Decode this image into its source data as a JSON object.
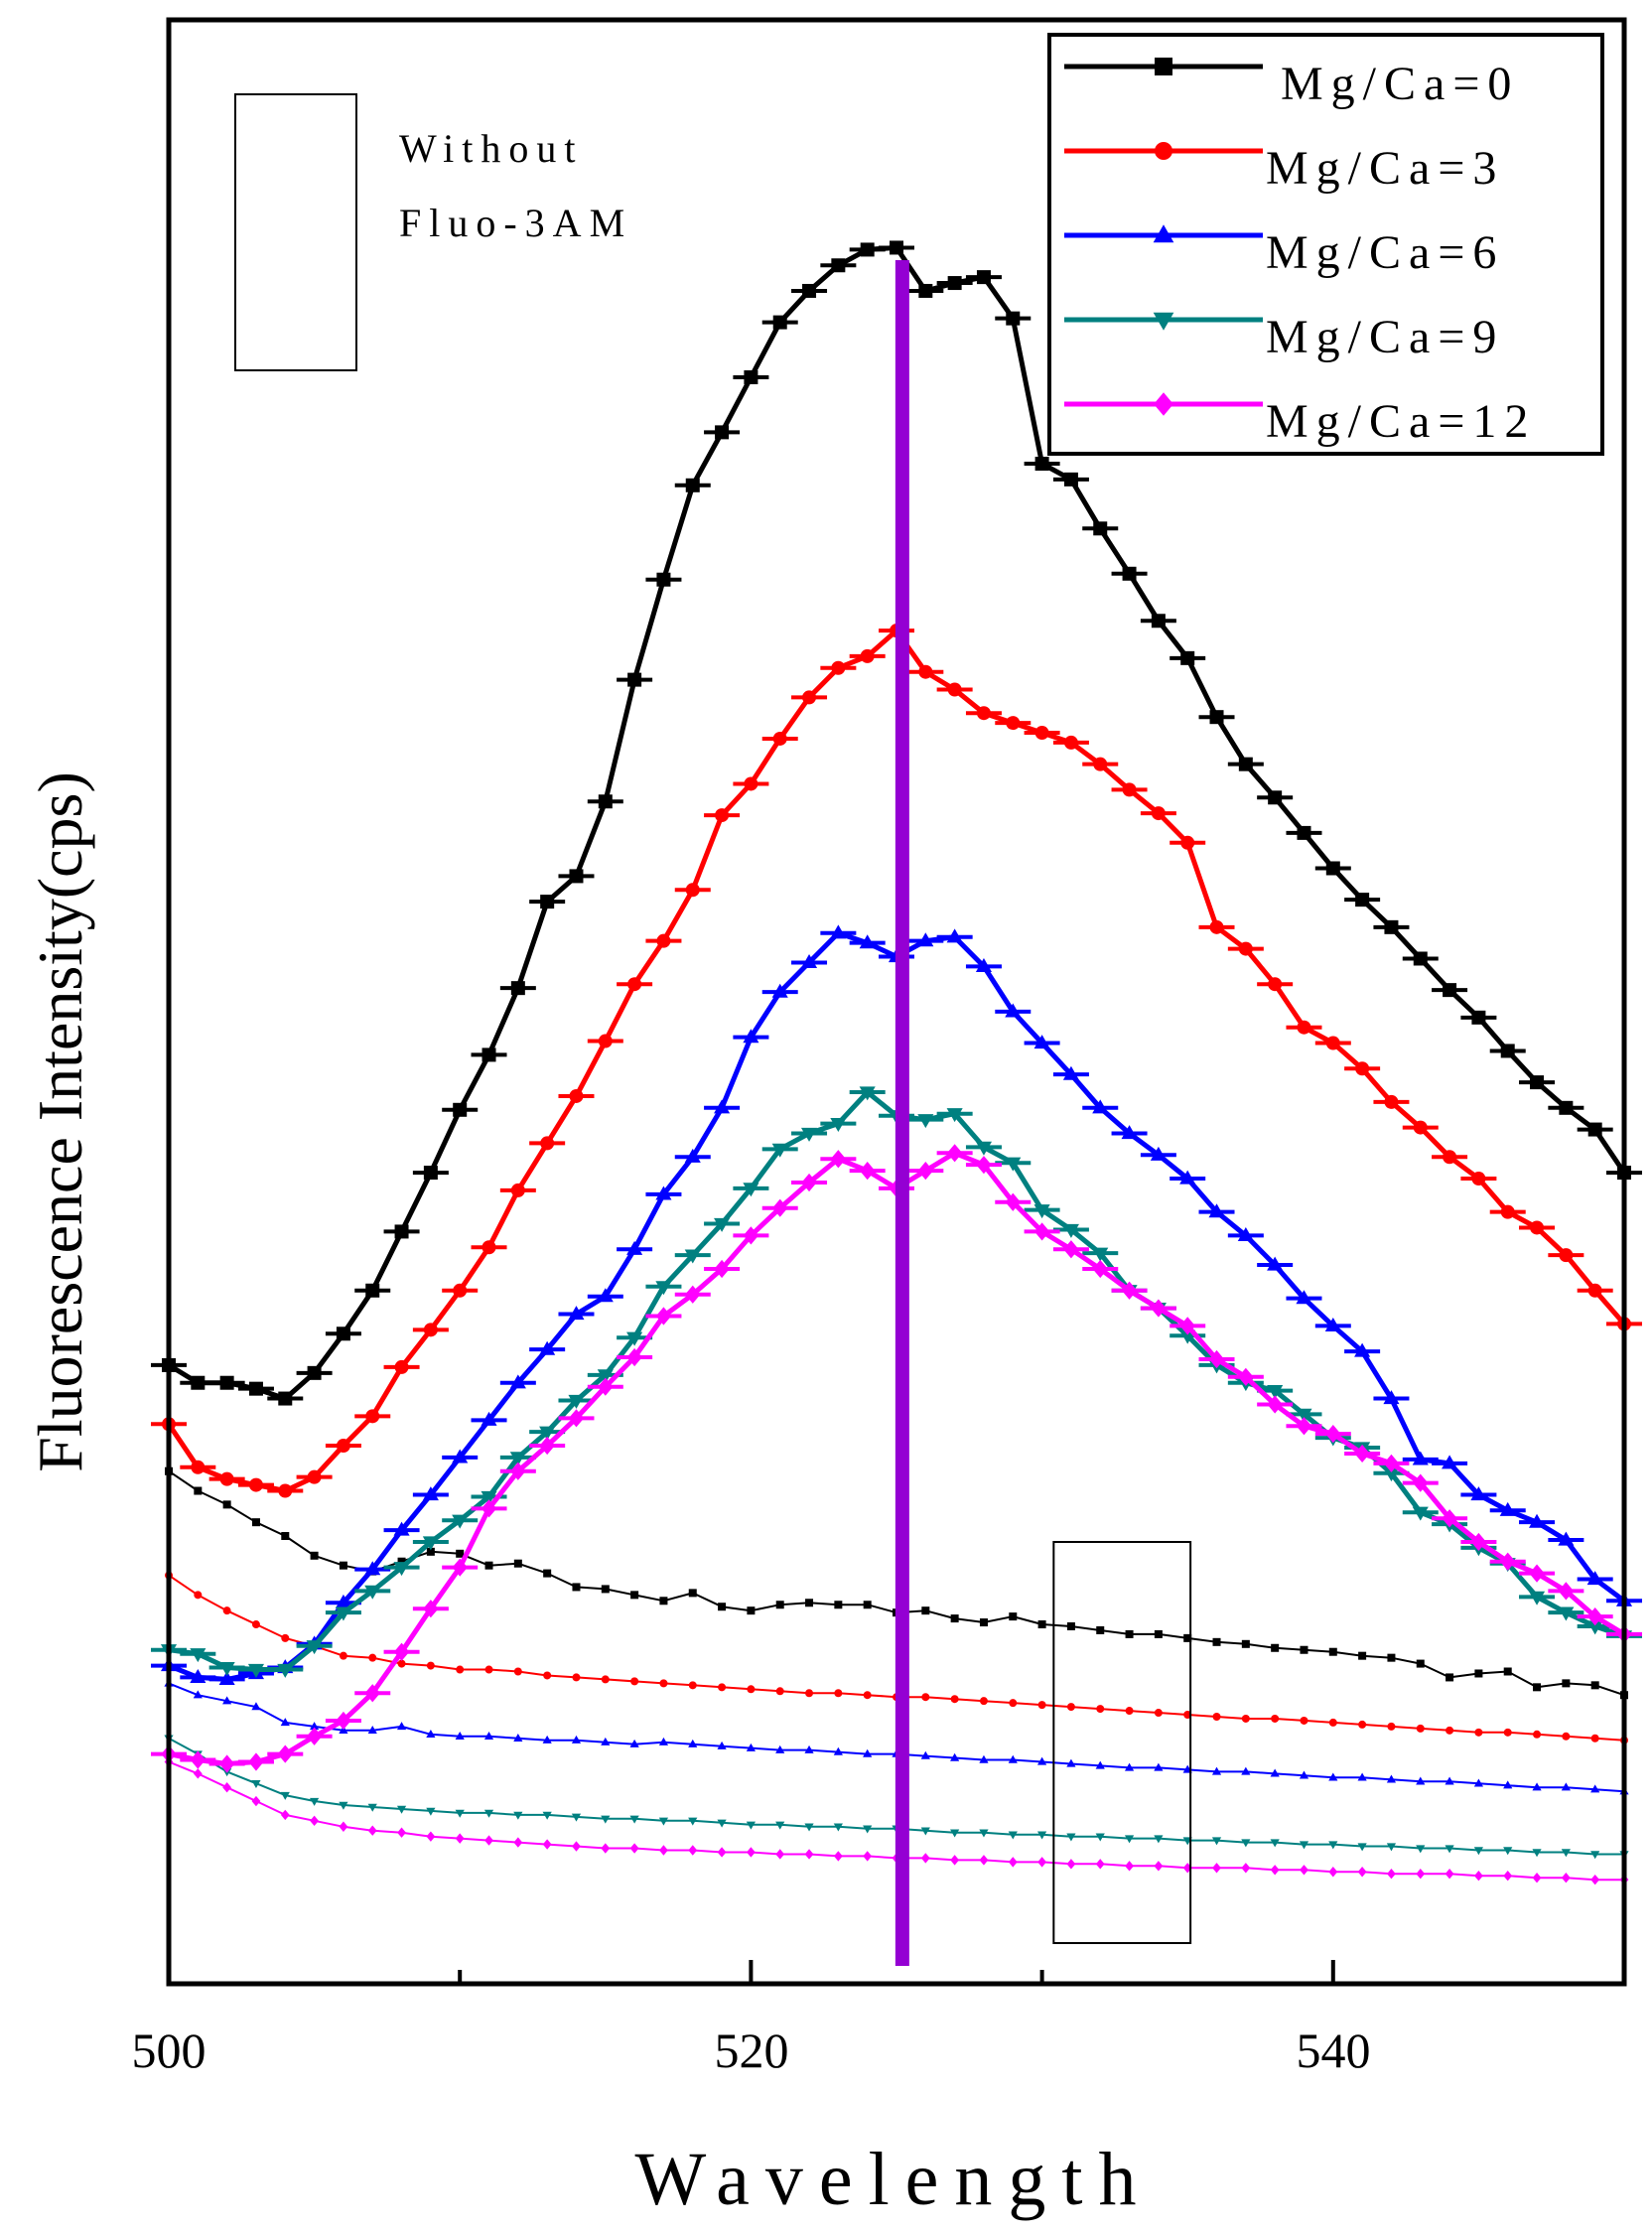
{
  "chart_data": {
    "type": "line",
    "title": "",
    "xlabel": "Wavelength",
    "ylabel": "Fluorescence Intensity(cps)",
    "xlim": [
      500,
      550
    ],
    "ylim": [
      0,
      100
    ],
    "y_units": "relative (unlabeled axis)",
    "xticks": [
      500,
      520,
      540
    ],
    "xticks_minor": [
      510,
      530,
      550
    ],
    "vertical_marker": {
      "x": 525.2,
      "color": "#9400D3"
    },
    "annotation_box": {
      "lines": [
        "Without",
        "Fluo-3AM"
      ]
    },
    "highlight_box_x_range": [
      530.4,
      535.1
    ],
    "legend": {
      "position": "top-right"
    },
    "x": [
      500,
      501,
      502,
      503,
      504,
      505,
      506,
      507,
      508,
      509,
      510,
      511,
      512,
      513,
      514,
      515,
      516,
      517,
      518,
      519,
      520,
      521,
      522,
      523,
      524,
      525,
      526,
      527,
      528,
      529,
      530,
      531,
      532,
      533,
      534,
      535,
      536,
      537,
      538,
      539,
      540,
      541,
      542,
      543,
      544,
      545,
      546,
      547,
      548,
      549,
      550
    ],
    "series": [
      {
        "name": "Mg/Ca=0",
        "color": "#000000",
        "marker": "square",
        "kind": "with Fluo-3AM",
        "values": [
          31.5,
          30.6,
          30.6,
          30.3,
          29.8,
          31.1,
          33.1,
          35.3,
          38.3,
          41.3,
          44.5,
          47.3,
          50.7,
          55.1,
          56.4,
          60.2,
          66.4,
          71.5,
          76.3,
          79.0,
          81.8,
          84.6,
          86.2,
          87.5,
          88.3,
          88.4,
          86.2,
          86.6,
          86.9,
          84.8,
          77.4,
          76.6,
          74.1,
          71.8,
          69.4,
          67.5,
          64.5,
          62.1,
          60.4,
          58.6,
          56.8,
          55.2,
          53.8,
          52.2,
          50.6,
          49.2,
          47.5,
          45.9,
          44.6,
          43.5,
          41.3
        ]
      },
      {
        "name": "Mg/Ca=3",
        "color": "#FF0000",
        "marker": "circle",
        "kind": "with Fluo-3AM",
        "values": [
          28.5,
          26.3,
          25.7,
          25.4,
          25.1,
          25.8,
          27.4,
          28.9,
          31.4,
          33.3,
          35.3,
          37.5,
          40.4,
          42.8,
          45.2,
          48.0,
          50.9,
          53.1,
          55.7,
          59.5,
          61.1,
          63.4,
          65.5,
          67.0,
          67.6,
          68.9,
          66.8,
          65.9,
          64.7,
          64.2,
          63.7,
          63.2,
          62.1,
          60.8,
          59.6,
          58.1,
          53.8,
          52.7,
          50.9,
          48.7,
          47.9,
          46.6,
          44.9,
          43.6,
          42.1,
          41.0,
          39.3,
          38.5,
          37.1,
          35.3,
          33.6
        ]
      },
      {
        "name": "Mg/Ca=6",
        "color": "#0000FF",
        "marker": "triangle-up",
        "kind": "with Fluo-3AM",
        "values": [
          16.2,
          15.6,
          15.5,
          15.8,
          16.1,
          17.3,
          19.4,
          21.1,
          23.1,
          24.9,
          26.8,
          28.7,
          30.6,
          32.3,
          34.1,
          35.0,
          37.4,
          40.2,
          42.1,
          44.6,
          48.2,
          50.5,
          52.0,
          53.5,
          53.0,
          52.3,
          53.1,
          53.3,
          51.8,
          49.5,
          47.9,
          46.3,
          44.6,
          43.3,
          42.2,
          41.0,
          39.3,
          38.1,
          36.6,
          34.9,
          33.5,
          32.2,
          29.8,
          26.7,
          26.5,
          24.9,
          24.1,
          23.5,
          22.6,
          20.6,
          19.5
        ]
      },
      {
        "name": "Mg/Ca=9",
        "color": "#008080",
        "marker": "triangle-down",
        "kind": "with Fluo-3AM",
        "values": [
          17.0,
          16.8,
          16.1,
          16.0,
          16.0,
          17.2,
          18.9,
          20.0,
          21.2,
          22.5,
          23.6,
          24.8,
          26.8,
          28.1,
          29.7,
          31.0,
          32.9,
          35.5,
          37.1,
          38.7,
          40.5,
          42.5,
          43.3,
          43.8,
          45.4,
          44.2,
          44.0,
          44.3,
          42.6,
          41.8,
          39.4,
          38.4,
          37.2,
          35.3,
          34.4,
          33.0,
          31.5,
          30.6,
          30.2,
          29.0,
          27.8,
          27.3,
          26.0,
          24.0,
          23.4,
          22.2,
          21.4,
          19.7,
          18.9,
          18.2,
          17.7
        ]
      },
      {
        "name": "Mg/Ca=12",
        "color": "#FF00FF",
        "marker": "diamond",
        "kind": "with Fluo-3AM",
        "values": [
          11.7,
          11.4,
          11.2,
          11.3,
          11.7,
          12.6,
          13.4,
          14.8,
          16.9,
          19.1,
          21.2,
          24.2,
          26.1,
          27.4,
          28.8,
          30.4,
          31.9,
          34.0,
          35.1,
          36.4,
          38.1,
          39.5,
          40.8,
          42.0,
          41.4,
          40.5,
          41.4,
          42.3,
          41.7,
          39.8,
          38.3,
          37.4,
          36.4,
          35.3,
          34.4,
          33.5,
          31.8,
          30.9,
          29.5,
          28.4,
          28.0,
          27.0,
          26.5,
          25.5,
          23.7,
          22.5,
          21.5,
          20.9,
          20.0,
          18.7,
          17.8
        ]
      },
      {
        "name": "Mg/Ca=0",
        "color": "#000000",
        "marker": "square-small",
        "kind": "without Fluo-3AM",
        "values": [
          26.1,
          25.1,
          24.4,
          23.5,
          22.8,
          21.8,
          21.3,
          21.0,
          21.5,
          22.0,
          21.9,
          21.3,
          21.4,
          20.9,
          20.2,
          20.1,
          19.8,
          19.5,
          19.9,
          19.2,
          19.0,
          19.3,
          19.4,
          19.3,
          19.3,
          18.9,
          19.0,
          18.6,
          18.4,
          18.7,
          18.3,
          18.2,
          18.0,
          17.8,
          17.8,
          17.6,
          17.4,
          17.3,
          17.1,
          17.0,
          16.9,
          16.7,
          16.6,
          16.3,
          15.6,
          15.8,
          15.9,
          15.1,
          15.3,
          15.2,
          14.7
        ]
      },
      {
        "name": "Mg/Ca=3",
        "color": "#FF0000",
        "marker": "circle-small",
        "kind": "without Fluo-3AM",
        "values": [
          20.8,
          19.8,
          19.0,
          18.3,
          17.6,
          17.2,
          16.7,
          16.6,
          16.3,
          16.2,
          16.0,
          16.0,
          15.9,
          15.7,
          15.6,
          15.5,
          15.4,
          15.3,
          15.2,
          15.1,
          15.0,
          14.9,
          14.8,
          14.8,
          14.7,
          14.6,
          14.6,
          14.5,
          14.4,
          14.3,
          14.2,
          14.1,
          14.0,
          13.9,
          13.8,
          13.7,
          13.6,
          13.5,
          13.5,
          13.4,
          13.3,
          13.2,
          13.1,
          13.0,
          12.9,
          12.8,
          12.8,
          12.7,
          12.6,
          12.5,
          12.4
        ]
      },
      {
        "name": "Mg/Ca=6",
        "color": "#0000FF",
        "marker": "triangle-up-small",
        "kind": "without Fluo-3AM",
        "values": [
          15.3,
          14.7,
          14.4,
          14.1,
          13.3,
          13.1,
          12.9,
          12.9,
          13.1,
          12.7,
          12.6,
          12.6,
          12.5,
          12.4,
          12.4,
          12.3,
          12.2,
          12.3,
          12.2,
          12.1,
          12.0,
          11.9,
          11.9,
          11.8,
          11.7,
          11.7,
          11.6,
          11.5,
          11.4,
          11.4,
          11.3,
          11.2,
          11.1,
          11.0,
          11.0,
          10.9,
          10.8,
          10.8,
          10.7,
          10.6,
          10.5,
          10.5,
          10.4,
          10.3,
          10.3,
          10.2,
          10.1,
          10.0,
          10.0,
          9.9,
          9.8
        ]
      },
      {
        "name": "Mg/Ca=9",
        "color": "#008080",
        "marker": "triangle-down-small",
        "kind": "without Fluo-3AM",
        "values": [
          12.5,
          11.7,
          10.8,
          10.2,
          9.6,
          9.3,
          9.1,
          9.0,
          8.9,
          8.8,
          8.7,
          8.7,
          8.6,
          8.6,
          8.5,
          8.4,
          8.4,
          8.3,
          8.3,
          8.2,
          8.1,
          8.1,
          8.0,
          8.0,
          7.9,
          7.9,
          7.8,
          7.7,
          7.7,
          7.6,
          7.6,
          7.5,
          7.5,
          7.4,
          7.4,
          7.3,
          7.3,
          7.2,
          7.2,
          7.1,
          7.1,
          7.0,
          7.0,
          6.9,
          6.9,
          6.8,
          6.8,
          6.7,
          6.7,
          6.6,
          6.6
        ]
      },
      {
        "name": "Mg/Ca=12",
        "color": "#FF00FF",
        "marker": "diamond-small",
        "kind": "without Fluo-3AM",
        "values": [
          11.3,
          10.7,
          10.0,
          9.3,
          8.6,
          8.3,
          8.0,
          7.8,
          7.7,
          7.5,
          7.4,
          7.3,
          7.2,
          7.1,
          7.0,
          6.9,
          6.9,
          6.8,
          6.8,
          6.7,
          6.7,
          6.6,
          6.6,
          6.5,
          6.5,
          6.4,
          6.4,
          6.3,
          6.3,
          6.2,
          6.2,
          6.1,
          6.1,
          6.0,
          6.0,
          5.9,
          5.9,
          5.9,
          5.8,
          5.8,
          5.7,
          5.7,
          5.6,
          5.6,
          5.6,
          5.5,
          5.5,
          5.4,
          5.4,
          5.3,
          5.3
        ]
      }
    ]
  }
}
